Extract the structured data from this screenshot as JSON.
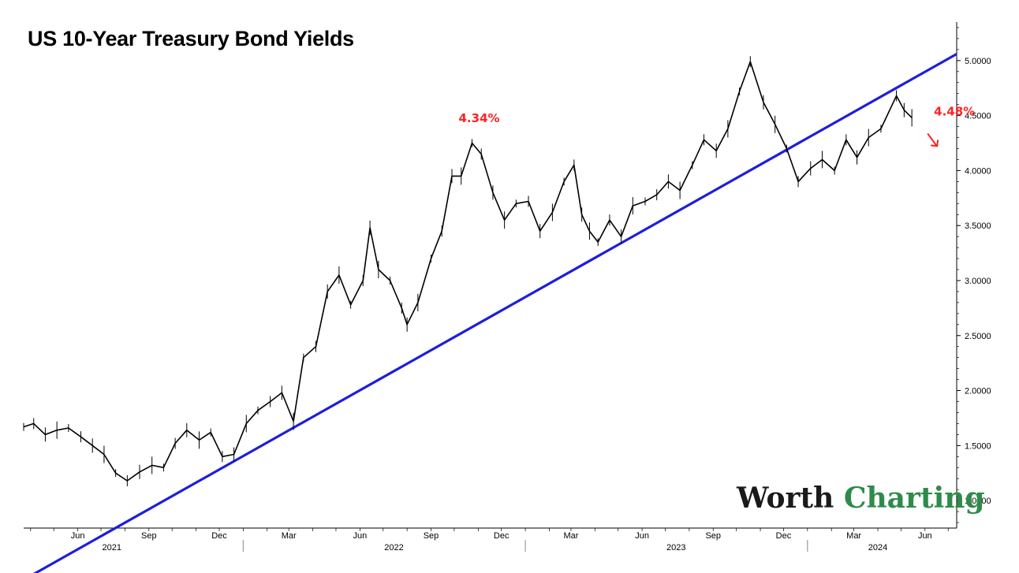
{
  "chart_data": {
    "type": "line",
    "title": "US 10-Year Treasury Bond Yields",
    "xlabel": "",
    "ylabel": "",
    "ylim": [
      0.75,
      5.35
    ],
    "xlim": [
      "2021-03-23",
      "2024-07-12"
    ],
    "y_ticks": [
      "1.0000",
      "1.5000",
      "2.0000",
      "2.5000",
      "3.0000",
      "3.5000",
      "4.0000",
      "4.5000",
      "5.0000"
    ],
    "x_ticks": [
      {
        "label": "Jun",
        "date": "2021-06-01"
      },
      {
        "label": "Sep",
        "date": "2021-09-01"
      },
      {
        "label": "Dec",
        "date": "2021-12-01"
      },
      {
        "label": "Mar",
        "date": "2022-03-01"
      },
      {
        "label": "Jun",
        "date": "2022-06-01"
      },
      {
        "label": "Sep",
        "date": "2022-09-01"
      },
      {
        "label": "Dec",
        "date": "2022-12-01"
      },
      {
        "label": "Mar",
        "date": "2023-03-01"
      },
      {
        "label": "Jun",
        "date": "2023-06-01"
      },
      {
        "label": "Sep",
        "date": "2023-09-01"
      },
      {
        "label": "Dec",
        "date": "2023-12-01"
      },
      {
        "label": "Mar",
        "date": "2024-03-01"
      },
      {
        "label": "Jun",
        "date": "2024-06-01"
      }
    ],
    "year_labels": [
      {
        "label": "2021",
        "date": "2021-07-15"
      },
      {
        "label": "2022",
        "date": "2022-07-15"
      },
      {
        "label": "2023",
        "date": "2023-07-15"
      },
      {
        "label": "2024",
        "date": "2024-04-01"
      }
    ],
    "year_boundaries": [
      "2022-01-01",
      "2023-01-01",
      "2024-01-01"
    ],
    "series": [
      {
        "color": "#000000",
        "points": [
          [
            "2021-03-23",
            1.67
          ],
          [
            "2021-04-05",
            1.7
          ],
          [
            "2021-04-20",
            1.6
          ],
          [
            "2021-05-05",
            1.64
          ],
          [
            "2021-05-20",
            1.66
          ],
          [
            "2021-06-05",
            1.58
          ],
          [
            "2021-06-20",
            1.5
          ],
          [
            "2021-07-05",
            1.42
          ],
          [
            "2021-07-20",
            1.25
          ],
          [
            "2021-08-04",
            1.18
          ],
          [
            "2021-08-20",
            1.26
          ],
          [
            "2021-09-05",
            1.32
          ],
          [
            "2021-09-20",
            1.3
          ],
          [
            "2021-10-05",
            1.52
          ],
          [
            "2021-10-20",
            1.64
          ],
          [
            "2021-11-05",
            1.55
          ],
          [
            "2021-11-20",
            1.62
          ],
          [
            "2021-12-05",
            1.4
          ],
          [
            "2021-12-20",
            1.42
          ],
          [
            "2022-01-05",
            1.7
          ],
          [
            "2022-01-20",
            1.82
          ],
          [
            "2022-02-05",
            1.9
          ],
          [
            "2022-02-20",
            1.98
          ],
          [
            "2022-03-07",
            1.72
          ],
          [
            "2022-03-20",
            2.3
          ],
          [
            "2022-04-05",
            2.4
          ],
          [
            "2022-04-20",
            2.9
          ],
          [
            "2022-05-05",
            3.05
          ],
          [
            "2022-05-20",
            2.78
          ],
          [
            "2022-06-05",
            3.0
          ],
          [
            "2022-06-14",
            3.48
          ],
          [
            "2022-06-25",
            3.1
          ],
          [
            "2022-07-10",
            3.0
          ],
          [
            "2022-07-25",
            2.75
          ],
          [
            "2022-08-01",
            2.6
          ],
          [
            "2022-08-15",
            2.8
          ],
          [
            "2022-09-01",
            3.2
          ],
          [
            "2022-09-15",
            3.45
          ],
          [
            "2022-09-28",
            3.95
          ],
          [
            "2022-10-10",
            3.95
          ],
          [
            "2022-10-24",
            4.25
          ],
          [
            "2022-11-05",
            4.15
          ],
          [
            "2022-11-20",
            3.8
          ],
          [
            "2022-12-05",
            3.55
          ],
          [
            "2022-12-20",
            3.7
          ],
          [
            "2023-01-05",
            3.72
          ],
          [
            "2023-01-20",
            3.45
          ],
          [
            "2023-02-05",
            3.62
          ],
          [
            "2023-02-20",
            3.9
          ],
          [
            "2023-03-05",
            4.05
          ],
          [
            "2023-03-15",
            3.6
          ],
          [
            "2023-03-25",
            3.45
          ],
          [
            "2023-04-05",
            3.35
          ],
          [
            "2023-04-20",
            3.55
          ],
          [
            "2023-05-05",
            3.4
          ],
          [
            "2023-05-20",
            3.68
          ],
          [
            "2023-06-05",
            3.72
          ],
          [
            "2023-06-20",
            3.78
          ],
          [
            "2023-07-05",
            3.9
          ],
          [
            "2023-07-20",
            3.82
          ],
          [
            "2023-08-05",
            4.05
          ],
          [
            "2023-08-20",
            4.28
          ],
          [
            "2023-09-05",
            4.18
          ],
          [
            "2023-09-20",
            4.38
          ],
          [
            "2023-10-05",
            4.72
          ],
          [
            "2023-10-19",
            4.99
          ],
          [
            "2023-11-05",
            4.62
          ],
          [
            "2023-11-20",
            4.42
          ],
          [
            "2023-12-05",
            4.2
          ],
          [
            "2023-12-20",
            3.9
          ],
          [
            "2024-01-05",
            4.02
          ],
          [
            "2024-01-20",
            4.1
          ],
          [
            "2024-02-05",
            4.0
          ],
          [
            "2024-02-20",
            4.28
          ],
          [
            "2024-03-05",
            4.12
          ],
          [
            "2024-03-20",
            4.3
          ],
          [
            "2024-04-05",
            4.38
          ],
          [
            "2024-04-25",
            4.68
          ],
          [
            "2024-05-05",
            4.55
          ],
          [
            "2024-05-15",
            4.48
          ]
        ]
      }
    ],
    "trendline": {
      "color": "#1e1edc",
      "from": [
        "2021-03-23",
        0.28
      ],
      "to": [
        "2024-07-12",
        5.06
      ]
    },
    "annotations": [
      {
        "text": "4.34%",
        "date": "2022-10-21",
        "value": 4.34,
        "color": "#ff2222"
      },
      {
        "text": "4.48%",
        "date": "2024-05-15",
        "value": 4.48,
        "color": "#ff2222"
      }
    ],
    "arrow": {
      "direction": "down",
      "color": "#ff2222"
    },
    "grid": false,
    "legend": "none"
  },
  "watermark": {
    "part1": "Worth",
    "part2": "Charting",
    "color1": "#1a1a1a",
    "color2": "#2e8b4a"
  }
}
